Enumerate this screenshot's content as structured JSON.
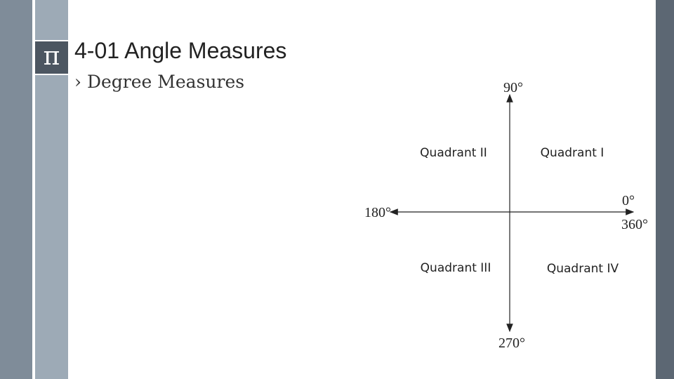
{
  "header": {
    "icon": "π",
    "title": "4-01 Angle Measures",
    "subtitle": "› Degree Measures"
  },
  "diagram": {
    "labels": [
      "90°",
      "0°",
      "360°",
      "180°",
      "270°"
    ],
    "quadrants": [
      "Quadrant II",
      "Quadrant I",
      "Quadrant III",
      "Quadrant IV"
    ]
  }
}
